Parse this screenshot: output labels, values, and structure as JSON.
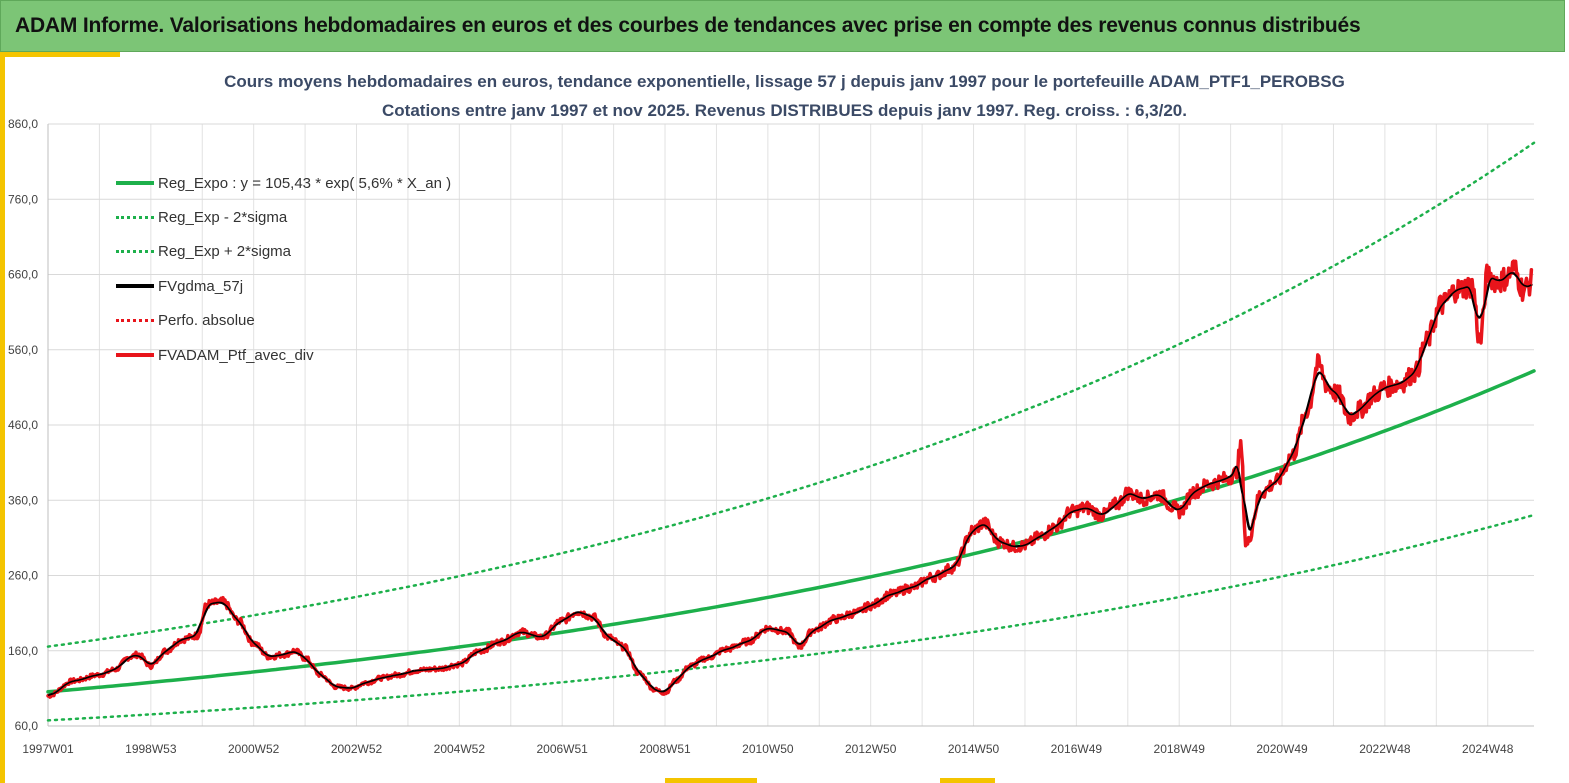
{
  "header": {
    "title": "ADAM Informe. Valorisations hebdomadaires en euros et des courbes de tendances avec prise en compte des revenus connus distribués"
  },
  "chart_data": {
    "type": "line",
    "title": "Cours moyens hebdomadaires  en euros, tendance exponentielle, lissage 57 j depuis janv 1997 pour le portefeuille ADAM_PTF1_PEROBSG",
    "subtitle": "Cotations entre janv 1997 et nov 2025. Revenus DISTRIBUES depuis janv 1997. Reg. croiss. : 6,3/20.",
    "xlabel": "",
    "ylabel": "",
    "ylim": [
      60,
      860
    ],
    "xlim": [
      1997.0,
      2025.9
    ],
    "grid": true,
    "legend_position": "top-left",
    "y_ticks": [
      "60,0",
      "160,0",
      "260,0",
      "360,0",
      "460,0",
      "560,0",
      "660,0",
      "760,0",
      "860,0"
    ],
    "x_ticks": [
      {
        "label": "1997W01",
        "x": 1997.0
      },
      {
        "label": "1998W53",
        "x": 1999.0
      },
      {
        "label": "2000W52",
        "x": 2001.0
      },
      {
        "label": "2002W52",
        "x": 2003.0
      },
      {
        "label": "2004W52",
        "x": 2005.0
      },
      {
        "label": "2006W51",
        "x": 2007.0
      },
      {
        "label": "2008W51",
        "x": 2009.0
      },
      {
        "label": "2010W50",
        "x": 2011.0
      },
      {
        "label": "2012W50",
        "x": 2013.0
      },
      {
        "label": "2014W50",
        "x": 2015.0
      },
      {
        "label": "2016W49",
        "x": 2017.0
      },
      {
        "label": "2018W49",
        "x": 2019.0
      },
      {
        "label": "2020W49",
        "x": 2021.0
      },
      {
        "label": "2022W48",
        "x": 2023.0
      },
      {
        "label": "2024W48",
        "x": 2025.0
      }
    ],
    "series": [
      {
        "name": "Reg_Expo : y = 105,43 * exp( 5,6% *  X_an )",
        "kind": "exp",
        "a": 105.43,
        "r": 0.056,
        "factor": 1.0,
        "color": "#1db04b",
        "dash": "",
        "width": 3.5
      },
      {
        "name": "Reg_Exp - 2*sigma",
        "kind": "exp",
        "a": 105.43,
        "r": 0.056,
        "factor": 0.64,
        "color": "#1db04b",
        "dash": "2,5",
        "width": 2.5
      },
      {
        "name": "Reg_Exp + 2*sigma",
        "kind": "exp",
        "a": 105.43,
        "r": 0.056,
        "factor": 1.57,
        "color": "#1db04b",
        "dash": "2,5",
        "width": 2.5
      },
      {
        "name": "FVgdma_57j",
        "kind": "data",
        "smooth": true,
        "color": "#000000",
        "dash": "",
        "width": 2.5
      },
      {
        "name": "Perfo. absolue",
        "kind": "legend-only",
        "color": "#e8141b",
        "dash": "2,5",
        "width": 2.5
      },
      {
        "name": "FVADAM_Ptf_avec_div",
        "kind": "data",
        "smooth": false,
        "color": "#e8141b",
        "dash": "",
        "width": 3.5
      }
    ],
    "points": {
      "x": [
        1997.0,
        1997.5,
        1998.0,
        1998.3,
        1998.6,
        1998.75,
        1999.0,
        1999.3,
        1999.6,
        1999.9,
        2000.1,
        2000.4,
        2000.7,
        2001.0,
        2001.3,
        2001.6,
        2001.8,
        2002.0,
        2002.3,
        2002.6,
        2002.9,
        2003.2,
        2003.5,
        2003.8,
        2004.2,
        2004.6,
        2005.0,
        2005.4,
        2005.8,
        2006.2,
        2006.6,
        2007.0,
        2007.3,
        2007.6,
        2007.9,
        2008.2,
        2008.5,
        2008.8,
        2009.0,
        2009.2,
        2009.5,
        2009.8,
        2010.2,
        2010.6,
        2011.0,
        2011.4,
        2011.6,
        2011.9,
        2012.3,
        2012.7,
        2013.0,
        2013.4,
        2013.8,
        2014.2,
        2014.6,
        2015.0,
        2015.2,
        2015.5,
        2015.8,
        2016.0,
        2016.3,
        2016.6,
        2016.9,
        2017.2,
        2017.5,
        2017.8,
        2018.0,
        2018.3,
        2018.6,
        2018.9,
        2019.0,
        2019.3,
        2019.6,
        2019.9,
        2020.1,
        2020.2,
        2020.3,
        2020.6,
        2020.9,
        2021.2,
        2021.5,
        2021.7,
        2021.9,
        2022.1,
        2022.3,
        2022.5,
        2022.8,
        2023.0,
        2023.3,
        2023.6,
        2023.8,
        2024.1,
        2024.4,
        2024.7,
        2024.85,
        2025.0,
        2025.2,
        2025.35,
        2025.5,
        2025.7,
        2025.85
      ],
      "y": [
        100,
        120,
        128,
        135,
        152,
        155,
        140,
        160,
        175,
        180,
        222,
        225,
        200,
        170,
        152,
        155,
        160,
        150,
        128,
        112,
        110,
        118,
        124,
        128,
        134,
        136,
        142,
        160,
        172,
        185,
        178,
        200,
        212,
        205,
        178,
        165,
        130,
        108,
        104,
        120,
        140,
        150,
        162,
        172,
        190,
        185,
        165,
        188,
        202,
        210,
        220,
        235,
        244,
        258,
        270,
        320,
        330,
        305,
        298,
        300,
        312,
        325,
        345,
        350,
        340,
        355,
        370,
        362,
        368,
        350,
        345,
        372,
        382,
        388,
        395,
        430,
        300,
        370,
        385,
        420,
        480,
        540,
        510,
        500,
        470,
        480,
        500,
        510,
        515,
        530,
        570,
        620,
        640,
        645,
        570,
        660,
        650,
        655,
        668,
        640,
        650
      ]
    }
  }
}
